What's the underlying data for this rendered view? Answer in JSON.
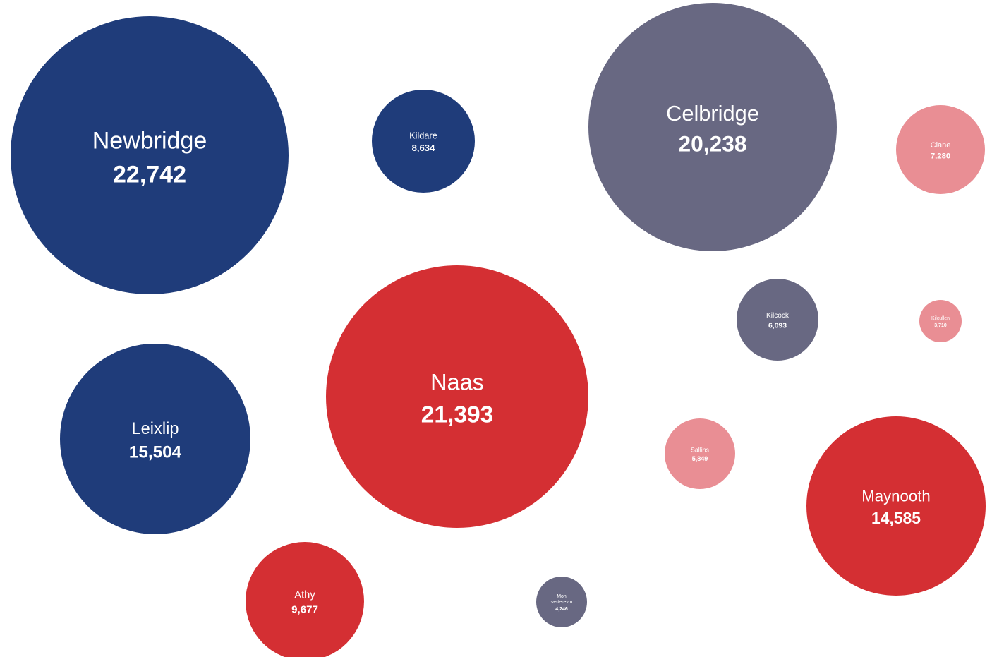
{
  "chart_data": {
    "type": "bubble",
    "title": "",
    "value_format": "thousands-separated",
    "legend": "none",
    "grid": false,
    "colors": {
      "navy": "#1f3c7a",
      "slate": "#686882",
      "red": "#d42f33",
      "pink": "#e98e94"
    },
    "series": [
      {
        "name": "Newbridge",
        "label_lines": [
          "Newbridge"
        ],
        "value": 22742,
        "value_label": "22,742",
        "color": "#1f3c7a"
      },
      {
        "name": "Kildare",
        "label_lines": [
          "Kildare"
        ],
        "value": 8634,
        "value_label": "8,634",
        "color": "#1f3c7a"
      },
      {
        "name": "Celbridge",
        "label_lines": [
          "Celbridge"
        ],
        "value": 20238,
        "value_label": "20,238",
        "color": "#686882"
      },
      {
        "name": "Clane",
        "label_lines": [
          "Clane"
        ],
        "value": 7280,
        "value_label": "7,280",
        "color": "#e98e94"
      },
      {
        "name": "Kilcock",
        "label_lines": [
          "Kilcock"
        ],
        "value": 6093,
        "value_label": "6,093",
        "color": "#686882"
      },
      {
        "name": "Kilcullen",
        "label_lines": [
          "Kilcullen"
        ],
        "value": 3710,
        "value_label": "3,710",
        "color": "#e98e94"
      },
      {
        "name": "Naas",
        "label_lines": [
          "Naas"
        ],
        "value": 21393,
        "value_label": "21,393",
        "color": "#d42f33"
      },
      {
        "name": "Leixlip",
        "label_lines": [
          "Leixlip"
        ],
        "value": 15504,
        "value_label": "15,504",
        "color": "#1f3c7a"
      },
      {
        "name": "Sallins",
        "label_lines": [
          "Sallins"
        ],
        "value": 5849,
        "value_label": "5,849",
        "color": "#e98e94"
      },
      {
        "name": "Maynooth",
        "label_lines": [
          "Maynooth"
        ],
        "value": 14585,
        "value_label": "14,585",
        "color": "#d42f33"
      },
      {
        "name": "Athy",
        "label_lines": [
          "Athy"
        ],
        "value": 9677,
        "value_label": "9,677",
        "color": "#d42f33"
      },
      {
        "name": "Monasterevin",
        "label_lines": [
          "Mon",
          "-asterevin"
        ],
        "value": 4246,
        "value_label": "4,246",
        "color": "#686882"
      }
    ]
  }
}
